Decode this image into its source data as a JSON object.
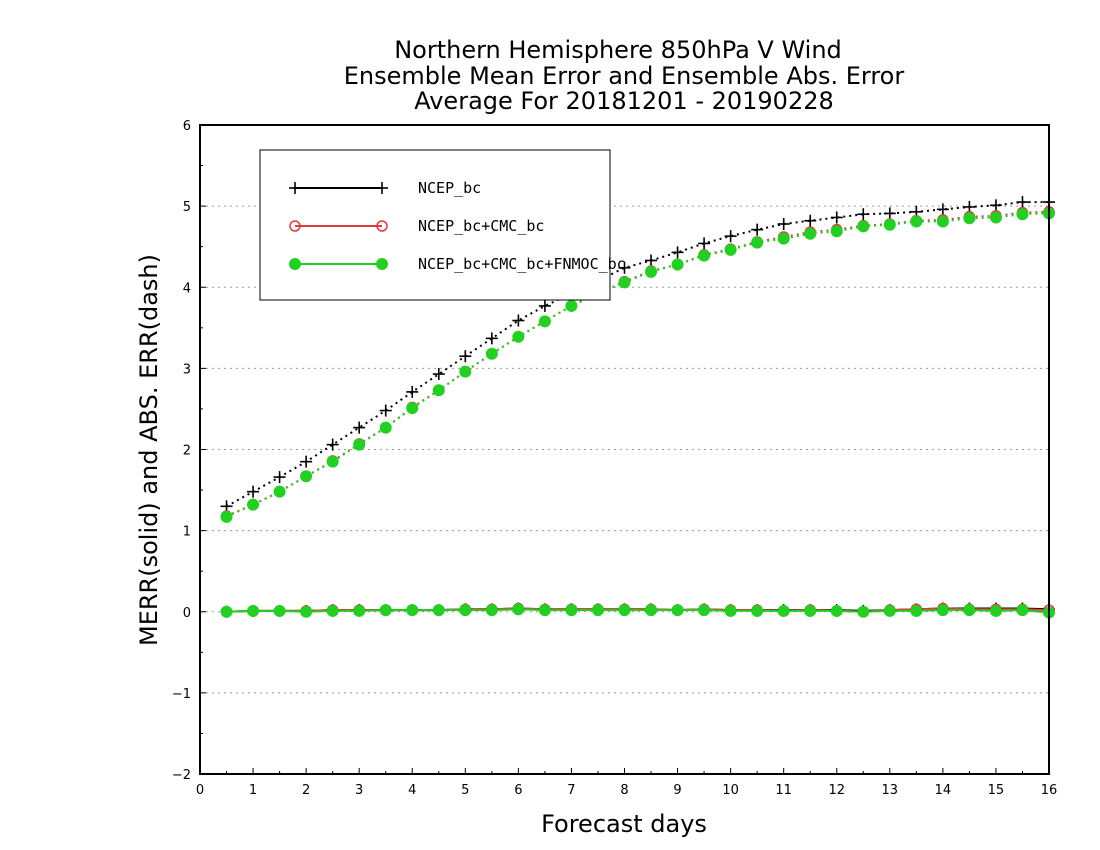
{
  "chart_data": {
    "type": "line",
    "title_lines": [
      "Northern Hemisphere 850hPa V Wind",
      "Ensemble Mean Error and Ensemble Abs. Error",
      "Average For 20181201 - 20190228"
    ],
    "xlabel": "Forecast days",
    "ylabel": "MERR(solid) and ABS. ERR(dash)",
    "xlim": [
      0,
      16
    ],
    "ylim": [
      -2,
      6
    ],
    "xticks": [
      "0",
      "1",
      "2",
      "3",
      "4",
      "5",
      "6",
      "7",
      "8",
      "9",
      "10",
      "11",
      "12",
      "13",
      "14",
      "15",
      "16"
    ],
    "yticks": [
      "−2",
      "−1",
      "0",
      "1",
      "2",
      "3",
      "4",
      "5",
      "6"
    ],
    "grid": "horizontal-dotted",
    "legend_position": "top-left",
    "x": [
      0.5,
      1,
      1.5,
      2,
      2.5,
      3,
      3.5,
      4,
      4.5,
      5,
      5.5,
      6,
      6.5,
      7,
      7.5,
      8,
      8.5,
      9,
      9.5,
      10,
      10.5,
      11,
      11.5,
      12,
      12.5,
      13,
      13.5,
      14,
      14.5,
      15,
      15.5,
      16
    ],
    "series": [
      {
        "name": "NCEP_bc",
        "color": "#000000",
        "marker": "plus",
        "abs_err": [
          1.3,
          1.48,
          1.66,
          1.85,
          2.06,
          2.27,
          2.48,
          2.71,
          2.93,
          3.15,
          3.37,
          3.59,
          3.77,
          3.92,
          4.08,
          4.24,
          4.33,
          4.43,
          4.54,
          4.63,
          4.71,
          4.78,
          4.82,
          4.86,
          4.9,
          4.91,
          4.93,
          4.96,
          4.99,
          5.01,
          5.05,
          5.05
        ],
        "mean_err": [
          0.0,
          0.01,
          0.01,
          0.01,
          0.02,
          0.02,
          0.02,
          0.02,
          0.02,
          0.03,
          0.03,
          0.04,
          0.03,
          0.03,
          0.03,
          0.03,
          0.03,
          0.02,
          0.03,
          0.02,
          0.02,
          0.02,
          0.02,
          0.02,
          0.01,
          0.02,
          0.03,
          0.04,
          0.04,
          0.04,
          0.04,
          0.03
        ]
      },
      {
        "name": "NCEP_bc+CMC_bc",
        "color": "#e23a3a",
        "marker": "open-circle",
        "abs_err": [
          1.18,
          1.32,
          1.48,
          1.67,
          1.86,
          2.07,
          2.27,
          2.52,
          2.73,
          2.96,
          3.18,
          3.39,
          3.58,
          3.77,
          3.92,
          4.07,
          4.2,
          4.28,
          4.4,
          4.47,
          4.56,
          4.62,
          4.68,
          4.71,
          4.76,
          4.78,
          4.82,
          4.83,
          4.87,
          4.88,
          4.92,
          4.93
        ],
        "mean_err": [
          0.0,
          0.01,
          0.01,
          0.01,
          0.02,
          0.02,
          0.02,
          0.02,
          0.02,
          0.03,
          0.03,
          0.04,
          0.03,
          0.03,
          0.03,
          0.03,
          0.03,
          0.02,
          0.03,
          0.02,
          0.02,
          0.01,
          0.02,
          0.01,
          0.0,
          0.02,
          0.03,
          0.04,
          0.03,
          0.03,
          0.03,
          0.02
        ]
      },
      {
        "name": "NCEP_bc+CMC_bc+FNMOC_bc",
        "color": "#22d022",
        "marker": "filled-circle",
        "abs_err": [
          1.17,
          1.32,
          1.48,
          1.67,
          1.85,
          2.06,
          2.27,
          2.51,
          2.73,
          2.96,
          3.18,
          3.39,
          3.58,
          3.77,
          3.92,
          4.06,
          4.19,
          4.28,
          4.39,
          4.46,
          4.55,
          4.6,
          4.66,
          4.69,
          4.75,
          4.77,
          4.81,
          4.81,
          4.85,
          4.86,
          4.9,
          4.91
        ],
        "mean_err": [
          0.0,
          0.01,
          0.01,
          0.0,
          0.01,
          0.01,
          0.02,
          0.02,
          0.02,
          0.02,
          0.02,
          0.03,
          0.02,
          0.02,
          0.02,
          0.02,
          0.02,
          0.02,
          0.02,
          0.01,
          0.01,
          0.01,
          0.01,
          0.01,
          0.0,
          0.01,
          0.01,
          0.02,
          0.02,
          0.01,
          0.02,
          -0.01
        ]
      }
    ]
  }
}
